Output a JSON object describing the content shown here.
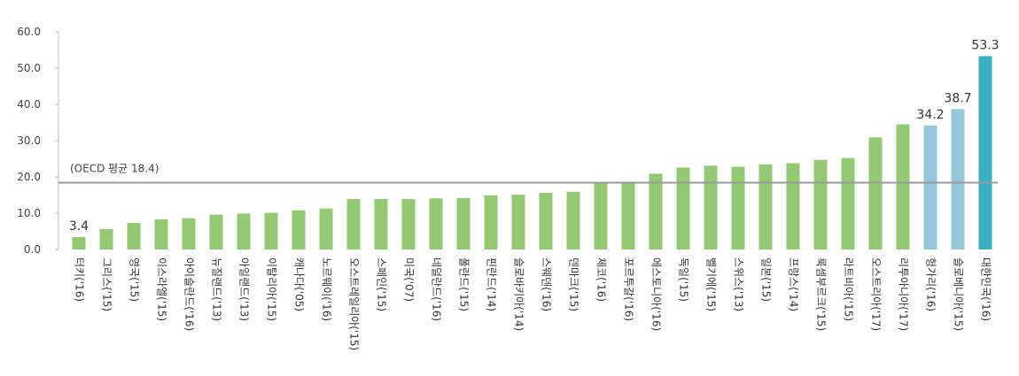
{
  "chart_data": {
    "type": "bar",
    "title": "",
    "xlabel": "",
    "ylabel": "",
    "ylim": [
      0,
      60
    ],
    "yticks": [
      "0.0",
      "10.0",
      "20.0",
      "30.0",
      "40.0",
      "50.0",
      "60.0"
    ],
    "grid": false,
    "categories": [
      "터키('16)",
      "그리스('15)",
      "영국('15)",
      "이스라엘('15)",
      "아이슬란드('16)",
      "뉴질랜드('13)",
      "아일랜드('13)",
      "이탈리아('15)",
      "캐나다('05)",
      "노르웨이('16)",
      "오스트레일리아('15)",
      "스페인('15)",
      "미국('07)",
      "네덜란드('16)",
      "폴란드('15)",
      "핀란드('14)",
      "슬로바키아('14)",
      "스웨덴('16)",
      "덴마크('15)",
      "체코('16)",
      "포르투갈('16)",
      "에스토니아('16)",
      "독일('15)",
      "벨기에('15)",
      "스위스('13)",
      "일본('15)",
      "프랑스('14)",
      "룩셈부르크('15)",
      "라트비아('15)",
      "오스트리아('17)",
      "리투아니아('17)",
      "헝가리('16)",
      "슬로베니아('15)",
      "대한민국('16)"
    ],
    "values": [
      3.4,
      5.6,
      7.3,
      8.3,
      8.6,
      9.6,
      9.9,
      10.1,
      10.8,
      11.3,
      13.9,
      13.9,
      13.9,
      14.1,
      14.2,
      14.9,
      15.1,
      15.6,
      15.9,
      18.2,
      18.7,
      20.9,
      22.6,
      23.1,
      22.8,
      23.5,
      23.8,
      24.7,
      25.2,
      30.9,
      34.5,
      34.2,
      38.7,
      53.3
    ],
    "colors": [
      "green",
      "green",
      "green",
      "green",
      "green",
      "green",
      "green",
      "green",
      "green",
      "green",
      "green",
      "green",
      "green",
      "green",
      "green",
      "green",
      "green",
      "green",
      "green",
      "green",
      "green",
      "green",
      "green",
      "green",
      "green",
      "green",
      "green",
      "green",
      "green",
      "green",
      "green",
      "lightblue",
      "lightblue",
      "teal"
    ],
    "data_labels": {
      "0": "3.4",
      "31": "34.2",
      "32": "38.7",
      "33": "53.3"
    },
    "reference_line": {
      "value": 18.4,
      "label": "(OECD 평균 18.4)"
    },
    "palette": {
      "green": "#94c973",
      "lightblue": "#93c7d9",
      "teal": "#3aafc1",
      "refline": "#9a9a9a",
      "axis": "#bbbbbb"
    }
  }
}
